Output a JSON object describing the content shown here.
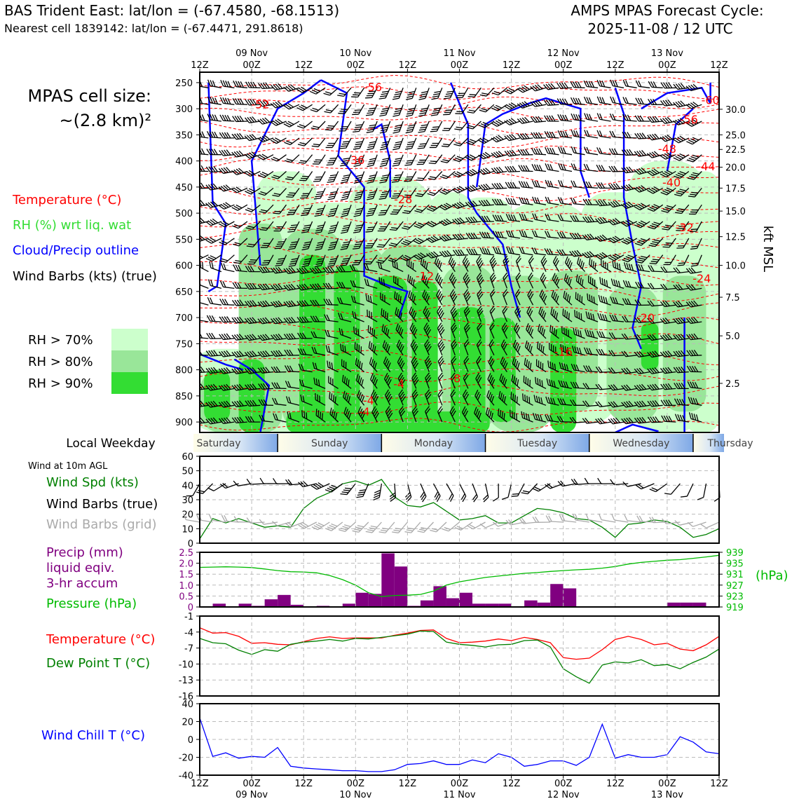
{
  "header": {
    "title_left": "BAS Trident East: lat/lon = (-67.4580, -68.1513)",
    "subtitle_left": "Nearest cell 1839142: lat/lon = (-67.4471, 291.8618)",
    "title_right_1": "AMPS MPAS Forecast Cycle:",
    "title_right_2": "2025-11-08 / 12 UTC"
  },
  "legend": {
    "cell_size_1": "MPAS cell size:",
    "cell_size_2": "~(2.8 km)²",
    "temperature": "Temperature (°C)",
    "rh": "RH (%) wrt liq. wat",
    "cloud": "Cloud/Precip outline",
    "wind": "Wind Barbs (kts) (true)",
    "rh70": "RH > 70%",
    "rh80": "RH > 80%",
    "rh90": "RH > 90%",
    "local_weekday": "Local Weekday",
    "wind_10m": "Wind at 10m AGL",
    "wind_spd": "Wind Spd (kts)",
    "wind_barbs_true": "Wind Barbs (true)",
    "wind_barbs_grid": "Wind Barbs (grid)",
    "precip_1": "Precip (mm)",
    "precip_2": "liquid eqiv.",
    "precip_3": "3-hr accum",
    "pressure": "Pressure (hPa)",
    "temp2": "Temperature (°C)",
    "dew": "Dew Point T (°C)",
    "windchill": "Wind Chill T (°C)",
    "kft": "kft MSL",
    "hpa": "(hPa)"
  },
  "colors": {
    "rh70": "#ccffcc",
    "rh80": "#99e699",
    "rh90": "#33dd33",
    "temp": "#ff0000",
    "cloud": "#0000ff",
    "wind_spd": "#008000",
    "precip": "#800080",
    "pressure": "#00bb00",
    "dew": "#008000",
    "chill": "#0000ff",
    "grid_barb": "#aaaaaa"
  },
  "time_axis": {
    "hour_labels": [
      "12Z",
      "00Z",
      "12Z",
      "00Z",
      "12Z",
      "00Z",
      "12Z",
      "00Z",
      "12Z",
      "00Z",
      "12Z"
    ],
    "date_labels": [
      "09 Nov",
      "10 Nov",
      "11 Nov",
      "12 Nov",
      "13 Nov"
    ]
  },
  "weekdays": [
    "Saturday",
    "Sunday",
    "Monday",
    "Tuesday",
    "Wednesday",
    "Thursday"
  ],
  "chart_data": [
    {
      "type": "heatmap",
      "name": "time-height cross section",
      "y_pressure_ticks": [
        "250",
        "300",
        "350",
        "400",
        "450",
        "500",
        "550",
        "600",
        "650",
        "700",
        "750",
        "800",
        "850",
        "900"
      ],
      "y_kft_ticks": [
        "30.0",
        "25.0",
        "22.5",
        "20.0",
        "17.5",
        "15.0",
        "12.5",
        "10.0",
        "7.5",
        "5.0",
        "2.5"
      ],
      "temperature_contour_labels": [
        "-56",
        "-52",
        "-36",
        "-28",
        "-12",
        "-4",
        "-4",
        "-4",
        "-8",
        "-16",
        "-20",
        "-24",
        "-32",
        "-40",
        "-44",
        "-48",
        "-56",
        "-60"
      ],
      "rh_threshold_levels_pct": [
        70,
        80,
        90
      ]
    },
    {
      "type": "line",
      "name": "10m wind speed",
      "ylim": [
        0,
        60
      ],
      "yticks": [
        "0",
        "10",
        "20",
        "30",
        "40",
        "50",
        "60"
      ],
      "x_hours": [
        0,
        3,
        6,
        9,
        12,
        15,
        18,
        21,
        24,
        27,
        30,
        33,
        36,
        39,
        42,
        45,
        48,
        51,
        54,
        57,
        60,
        63,
        66,
        69,
        72,
        75,
        78,
        81,
        84,
        87,
        90,
        93,
        96,
        99,
        102,
        105,
        108,
        111,
        114,
        117,
        120
      ],
      "values": [
        3,
        17,
        14,
        17,
        14,
        11,
        12,
        11,
        24,
        31,
        35,
        41,
        43,
        40,
        44,
        32,
        26,
        25,
        28,
        22,
        16,
        17,
        19,
        14,
        14,
        19,
        24,
        23,
        21,
        17,
        16,
        11,
        4,
        13,
        14,
        16,
        15,
        11,
        4,
        6,
        10
      ]
    },
    {
      "type": "bar",
      "name": "3-hr precip",
      "ylim": [
        0,
        2.5
      ],
      "yticks": [
        "0",
        "0.5",
        "1.0",
        "1.5",
        "2.0",
        "2.5"
      ],
      "values": [
        0,
        0.15,
        0,
        0.15,
        0.05,
        0.35,
        0.55,
        0.1,
        0,
        0.05,
        0,
        0.15,
        0.65,
        0.6,
        2.45,
        1.85,
        0.05,
        0.3,
        0.95,
        0.4,
        0.65,
        0.15,
        0.15,
        0.15,
        0,
        0.3,
        0.2,
        1.05,
        0.85,
        0,
        0,
        0,
        0,
        0,
        0,
        0,
        0.2,
        0.2,
        0.2,
        0,
        0
      ],
      "pressure_ylim": [
        919,
        939
      ],
      "pressure_yticks": [
        "919",
        "923",
        "927",
        "931",
        "935",
        "939"
      ],
      "pressure_values": [
        933.5,
        933.6,
        933.7,
        933.6,
        933.4,
        932.9,
        932.3,
        931.9,
        931.8,
        931.5,
        930.5,
        929,
        927,
        924.2,
        922.8,
        923.2,
        923.3,
        923.6,
        924.8,
        927,
        928.2,
        929,
        929.8,
        930.3,
        930.8,
        931.3,
        931.6,
        932,
        932.3,
        932.6,
        932.8,
        933.2,
        933.8,
        934.7,
        935.3,
        935.7,
        936.1,
        936.3,
        936.8,
        937.3,
        937.9
      ]
    },
    {
      "type": "line",
      "name": "temperature and dew point",
      "ylim": [
        -16,
        -1
      ],
      "yticks": [
        "-16",
        "-13",
        "-10",
        "-7",
        "-4",
        "-1"
      ],
      "series": [
        {
          "name": "Temperature (°C)",
          "values": [
            -3.2,
            -4.2,
            -4.1,
            -4.8,
            -6.1,
            -6.0,
            -6.3,
            -6.4,
            -5.8,
            -5.2,
            -4.9,
            -5.2,
            -5.1,
            -5.1,
            -5.1,
            -4.6,
            -4.2,
            -3.7,
            -3.6,
            -5.2,
            -6.0,
            -5.9,
            -5.7,
            -5.3,
            -5.6,
            -5.0,
            -5.4,
            -6.0,
            -8.8,
            -9.1,
            -8.9,
            -7.3,
            -5.4,
            -4.8,
            -5.4,
            -6.4,
            -6.1,
            -7.2,
            -7.5,
            -6.4,
            -4.8
          ]
        },
        {
          "name": "Dew Point T (°C)",
          "values": [
            -5.2,
            -6.0,
            -6.2,
            -7.4,
            -8.2,
            -7.3,
            -7.6,
            -6.3,
            -5.9,
            -5.7,
            -5.4,
            -5.7,
            -5.2,
            -5.3,
            -5.0,
            -4.7,
            -4.4,
            -3.8,
            -3.9,
            -5.9,
            -6.3,
            -6.5,
            -6.8,
            -6.4,
            -6.3,
            -5.6,
            -5.5,
            -6.8,
            -10.9,
            -12.4,
            -13.6,
            -10.2,
            -9.6,
            -9.8,
            -9.2,
            -10.3,
            -10.1,
            -10.9,
            -9.7,
            -8.7,
            -7.2
          ]
        }
      ]
    },
    {
      "type": "line",
      "name": "wind chill",
      "ylim": [
        -40,
        40
      ],
      "yticks": [
        "-40",
        "-20",
        "0",
        "20",
        "40"
      ],
      "values": [
        24,
        -19,
        -15,
        -21,
        -19,
        -20,
        -9,
        -30,
        -32,
        -33,
        -34,
        -35,
        -35,
        -36,
        -36,
        -34,
        -28,
        -27,
        -24,
        -28,
        -28,
        -23,
        -26,
        -16,
        -20,
        -30,
        -28,
        -24,
        -24,
        -29,
        -20,
        17,
        -21,
        -17,
        -20,
        -20,
        -17,
        3,
        -3,
        -14,
        -16
      ]
    }
  ]
}
